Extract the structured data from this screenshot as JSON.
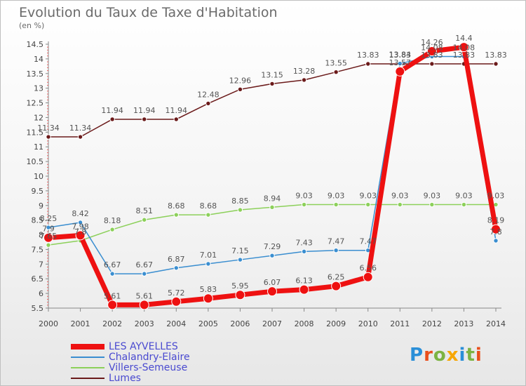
{
  "title": "Evolution du Taux de Taxe d'Habitation",
  "unit_label": "(en %)",
  "logo_text": "Proxiti",
  "colors": {
    "logo": [
      "#2a8fd8",
      "#e94e1b",
      "#7cb342",
      "#f7a600",
      "#2a8fd8",
      "#7cb342",
      "#e94e1b"
    ]
  },
  "chart_data": {
    "type": "line",
    "title": "Evolution du Taux de Taxe d'Habitation",
    "ylabel": "(en %)",
    "xlabel": "",
    "ylim": [
      5.5,
      14.5
    ],
    "y_ticks": [
      "5.5",
      "6",
      "6.5",
      "7",
      "7.5",
      "8",
      "8.5",
      "9",
      "9.5",
      "10",
      "10.5",
      "11",
      "11.5",
      "12",
      "12.5",
      "13",
      "13.5",
      "14",
      "14.5"
    ],
    "x": [
      "2000",
      "2001",
      "2002",
      "2003",
      "2004",
      "2005",
      "2006",
      "2007",
      "2008",
      "2009",
      "2010",
      "2011",
      "2012",
      "2013",
      "2014"
    ],
    "grid": false,
    "legend_position": "bottom-left",
    "series": [
      {
        "name": "Lumes",
        "color": "#6b1a1a",
        "values": [
          11.34,
          11.34,
          11.94,
          11.94,
          11.94,
          12.48,
          12.96,
          13.15,
          13.28,
          13.55,
          13.83,
          13.83,
          13.83,
          13.83,
          13.83
        ],
        "labels": [
          "11.34",
          "11.34",
          "11.94",
          "11.94",
          "11.94",
          "12.48",
          "12.96",
          "13.15",
          "13.28",
          "13.55",
          "13.83",
          "13.83",
          "13.83",
          "13.83",
          "13.83"
        ]
      },
      {
        "name": "Villers-Semeuse",
        "color": "#8cd05a",
        "values": [
          7.65,
          7.8,
          8.18,
          8.51,
          8.68,
          8.68,
          8.85,
          8.94,
          9.03,
          9.03,
          9.03,
          9.03,
          9.03,
          9.03,
          9.03
        ],
        "labels": [
          "7.65",
          "7.8",
          "8.18",
          "8.51",
          "8.68",
          "8.68",
          "8.85",
          "8.94",
          "9.03",
          "9.03",
          "9.03",
          "9.03",
          "9.03",
          "9.03",
          "9.03"
        ]
      },
      {
        "name": "Chalandry-Elaire",
        "color": "#3a8ed0",
        "values": [
          8.25,
          8.42,
          6.67,
          6.67,
          6.87,
          7.01,
          7.15,
          7.29,
          7.43,
          7.47,
          7.47,
          13.84,
          14.08,
          14.08,
          7.8
        ],
        "labels": [
          "8.25",
          "8.42",
          "6.67",
          "6.67",
          "6.87",
          "7.01",
          "7.15",
          "7.29",
          "7.43",
          "7.47",
          "7.47",
          "13.84",
          "14.08",
          "14.08",
          "7.8"
        ]
      },
      {
        "name": "LES AYVELLES",
        "color": "#ee1111",
        "values": [
          7.9,
          7.98,
          5.61,
          5.61,
          5.72,
          5.83,
          5.95,
          6.07,
          6.13,
          6.25,
          6.56,
          13.57,
          14.26,
          14.4,
          8.19
        ],
        "labels": [
          "7.9",
          "7.98",
          "5.61",
          "5.61",
          "5.72",
          "5.83",
          "5.95",
          "6.07",
          "6.13",
          "6.25",
          "6.56",
          "13.57",
          "14.26",
          "14.4",
          "8.19"
        ]
      }
    ],
    "legend": [
      "LES AYVELLES",
      "Chalandry-Elaire",
      "Villers-Semeuse",
      "Lumes"
    ]
  }
}
